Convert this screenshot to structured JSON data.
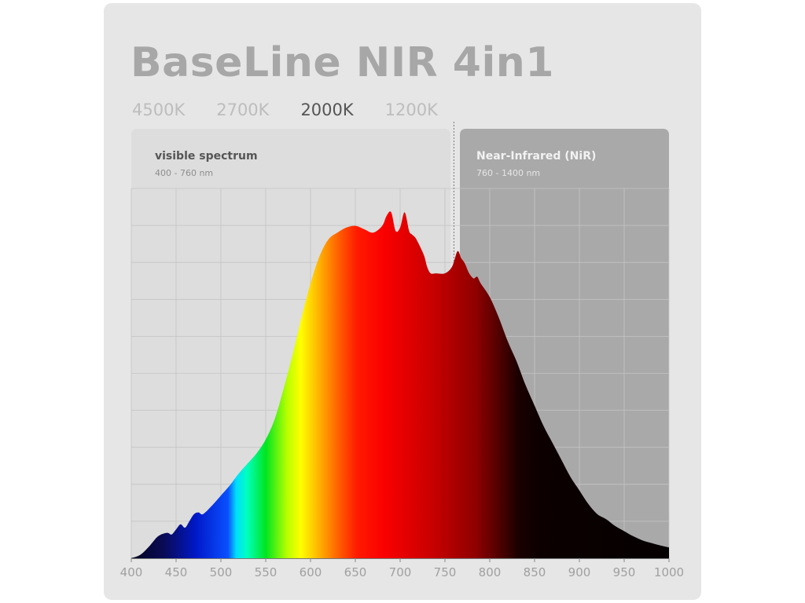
{
  "product": {
    "title": "BaseLine NIR 4in1"
  },
  "color_temperatures": [
    {
      "label": "4500K",
      "active": false
    },
    {
      "label": "2700K",
      "active": false
    },
    {
      "label": "2000K",
      "active": true
    },
    {
      "label": "1200K",
      "active": false
    }
  ],
  "colors": {
    "background": "#e6e6e6",
    "visible_band": "#dddddd",
    "nir_band": "#a9a9a9",
    "title": "#a7a7a7",
    "active_temp": "#555555",
    "inactive_temp": "#bdbdbd"
  },
  "chart_data": {
    "type": "area",
    "title": "",
    "xlabel": "",
    "ylabel": "",
    "xlim": [
      400,
      1000
    ],
    "ylim": [
      0,
      1
    ],
    "grid": true,
    "xticks": [
      400,
      450,
      500,
      550,
      600,
      650,
      700,
      750,
      800,
      850,
      900,
      950,
      1000
    ],
    "bands": [
      {
        "name": "visible spectrum",
        "range_label": "400 - 760 nm",
        "from": 400,
        "to": 760
      },
      {
        "name": "Near-Infrared (NiR)",
        "range_label": "760 - 1400 nm",
        "from": 760,
        "to": 1000
      }
    ],
    "series": [
      {
        "x": [
          400,
          410,
          420,
          430,
          440,
          445,
          450,
          455,
          460,
          465,
          470,
          475,
          480,
          490,
          500,
          510,
          520,
          530,
          540,
          550,
          560,
          570,
          580,
          590,
          600,
          610,
          620,
          630,
          640,
          650,
          660,
          670,
          680,
          685,
          690,
          695,
          700,
          705,
          710,
          713,
          717,
          722,
          727,
          730,
          734,
          740,
          750,
          758,
          764,
          768,
          772,
          777,
          782,
          786,
          790,
          800,
          810,
          820,
          830,
          840,
          850,
          860,
          870,
          880,
          890,
          900,
          910,
          920,
          930,
          940,
          950,
          960,
          970,
          980,
          990,
          1000
        ],
        "y": [
          0.0,
          0.01,
          0.035,
          0.065,
          0.075,
          0.07,
          0.085,
          0.1,
          0.09,
          0.11,
          0.13,
          0.135,
          0.13,
          0.155,
          0.185,
          0.215,
          0.25,
          0.28,
          0.31,
          0.35,
          0.41,
          0.5,
          0.6,
          0.71,
          0.81,
          0.89,
          0.94,
          0.96,
          0.975,
          0.98,
          0.97,
          0.96,
          0.98,
          1.01,
          1.02,
          0.965,
          0.975,
          1.02,
          0.965,
          0.955,
          0.945,
          0.92,
          0.89,
          0.86,
          0.84,
          0.84,
          0.84,
          0.86,
          0.905,
          0.885,
          0.87,
          0.84,
          0.825,
          0.83,
          0.81,
          0.77,
          0.71,
          0.64,
          0.58,
          0.51,
          0.45,
          0.39,
          0.34,
          0.29,
          0.24,
          0.2,
          0.16,
          0.13,
          0.115,
          0.095,
          0.08,
          0.065,
          0.053,
          0.045,
          0.038,
          0.032
        ]
      }
    ]
  }
}
